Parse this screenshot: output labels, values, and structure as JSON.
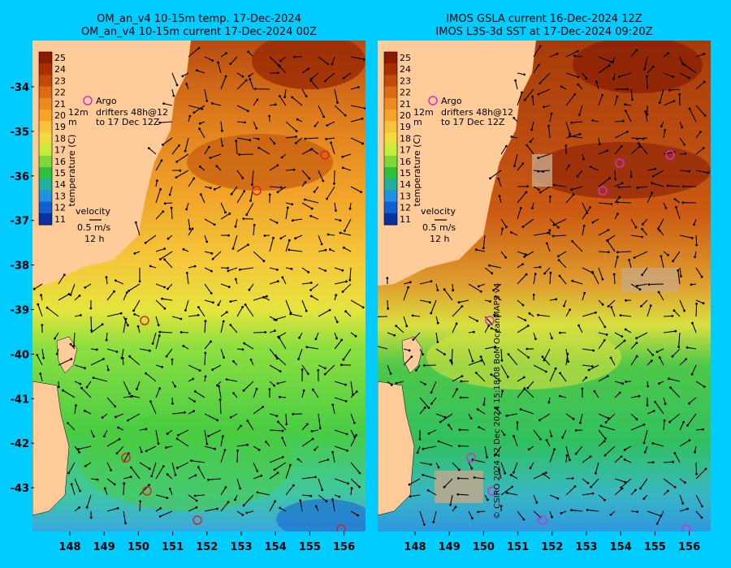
{
  "left_panel": {
    "title_line1": "OM_an_v4  10-15m temp. 17-Dec-2024",
    "title_line2": "OM_an_v4  10-15m current 17-Dec-2024 00Z"
  },
  "right_panel": {
    "title_line1": "IMOS GSLA current 16-Dec-2024 12Z",
    "title_line2": "IMOS L3S-3d SST at 17-Dec-2024 09:20Z"
  },
  "axes": {
    "longitude_ticks": [
      "148",
      "149",
      "150",
      "151",
      "152",
      "153",
      "154",
      "155",
      "156"
    ],
    "latitude_ticks": [
      "-34",
      "-35",
      "-36",
      "-37",
      "-38",
      "-39",
      "-40",
      "-41",
      "-42",
      "-43"
    ]
  },
  "colorbar": {
    "label": "temperature (C)",
    "ticks": [
      "25",
      "24",
      "23",
      "22",
      "21",
      "20",
      "19",
      "18",
      "17",
      "16",
      "15",
      "14",
      "13",
      "12",
      "11"
    ],
    "colors": [
      "#8b1a00",
      "#a83000",
      "#c44a08",
      "#dd6a14",
      "#ee8a20",
      "#f5a628",
      "#f8c33a",
      "#f0dc40",
      "#c8ec3a",
      "#7fd83a",
      "#2fc040",
      "#20b0a0",
      "#2090e0",
      "#1060d0",
      "#0830a0"
    ]
  },
  "legend": {
    "argo": "Argo",
    "drifters_line1": "drifters 48h@12",
    "drifters_line2": "to 17 Dec 12Z",
    "unit_fragment_1": "12m",
    "unit_fragment_2": "m",
    "velocity_label": "velocity",
    "velocity_value": "0.5 m/s",
    "velocity_time": "12 h"
  },
  "credit": "© CSIRO 2024   22 Dec 2024 15:18:08 BoM OceanMAPS v4",
  "colors": {
    "background": "#00ccff",
    "land": "#ffcc99",
    "argo_left": "#e02020",
    "argo_right": "#d030d0"
  }
}
